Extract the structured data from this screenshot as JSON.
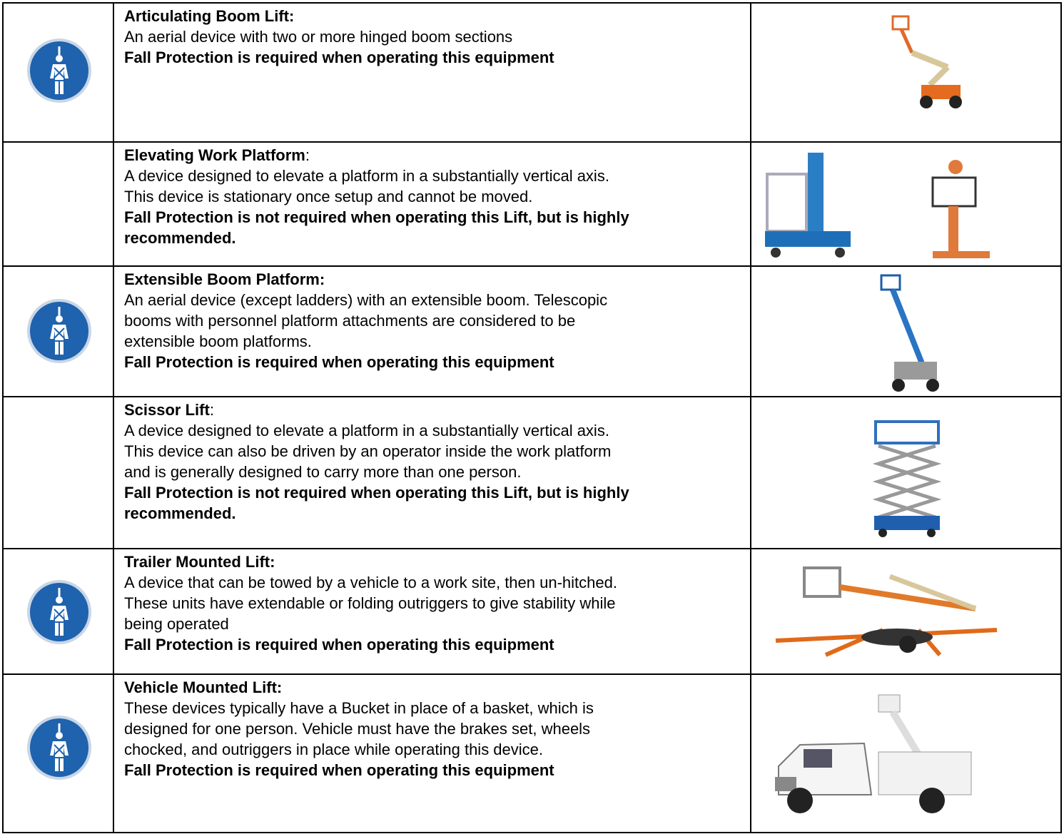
{
  "table": {
    "rows": [
      {
        "title": "Articulating Boom Lift:",
        "description": [
          "An aerial device with two or more hinged boom sections"
        ],
        "note": [
          "Fall Protection is required when operating this equipment"
        ]
      },
      {
        "title": "Elevating Work Platform",
        "title_colon": ":",
        "description": [
          "A device designed to elevate a platform in a substantially vertical axis.",
          "This device is stationary once setup and cannot be moved."
        ],
        "note": [
          "Fall Protection is not required when operating this Lift, but is highly",
          "recommended."
        ]
      },
      {
        "title": "Extensible Boom Platform:",
        "description": [
          "An aerial device (except ladders) with an extensible boom.  Telescopic",
          "booms with personnel platform attachments are considered to be",
          "extensible boom platforms."
        ],
        "note": [
          "Fall Protection is required when operating this equipment"
        ]
      },
      {
        "title": "Scissor Lift",
        "title_colon": ":",
        "description": [
          "A device designed to elevate a platform in a substantially vertical axis.",
          "This device can also be driven by an operator inside the work platform",
          "and is generally designed to carry more than one person."
        ],
        "note": [
          "Fall Protection is not required when operating this Lift, but is highly",
          "recommended."
        ]
      },
      {
        "title": "Trailer Mounted Lift:",
        "description": [
          "A device that can be towed by a vehicle to a work site, then un-hitched.",
          "These units have extendable or folding outriggers to give stability while",
          "being operated"
        ],
        "note": [
          "Fall Protection is required when operating this equipment"
        ]
      },
      {
        "title": "Vehicle Mounted Lift:",
        "description": [
          "These devices typically have a Bucket in place of a basket, which is",
          "designed for one person.  Vehicle must have the brakes set, wheels",
          "chocked, and outriggers in place while operating this device."
        ],
        "note": [
          "Fall Protection is required when operating this equipment"
        ]
      }
    ]
  }
}
